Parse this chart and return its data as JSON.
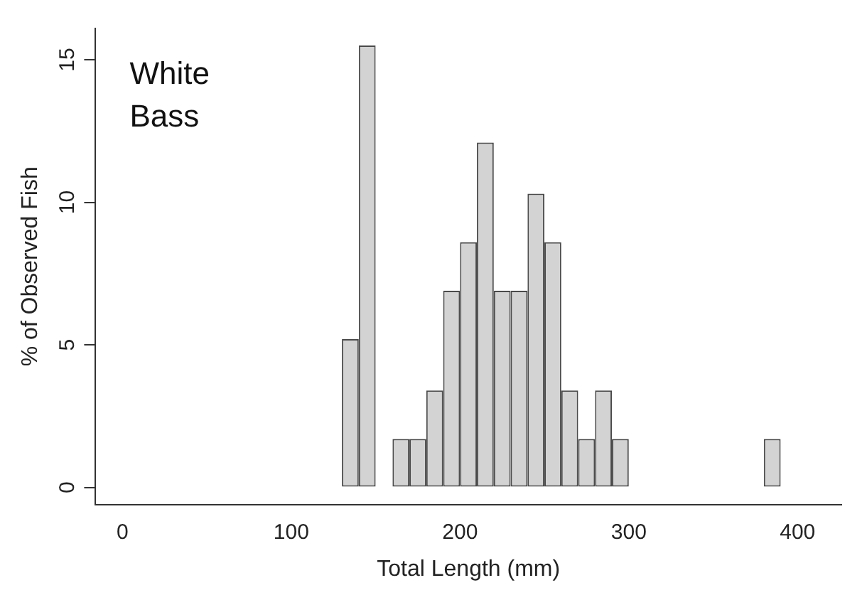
{
  "chart_data": {
    "type": "histogram",
    "xlabel": "Total Length (mm)",
    "ylabel": "% of Observed Fish",
    "annotations": [
      "White Bass"
    ],
    "bins": [
      130,
      140,
      150,
      160,
      170,
      180,
      190,
      200,
      210,
      220,
      230,
      240,
      250,
      260,
      270,
      280,
      290,
      300,
      310,
      320,
      330,
      340,
      350,
      360,
      370,
      380,
      390
    ],
    "values": [
      5.2,
      15.5,
      0,
      1.7,
      1.7,
      3.4,
      6.9,
      8.6,
      12.1,
      6.9,
      6.9,
      10.3,
      8.6,
      3.4,
      1.7,
      3.4,
      1.7,
      0,
      0,
      0,
      0,
      0,
      0,
      0,
      0,
      1.7
    ],
    "color": "#d3d3d3",
    "xlim": [
      -16,
      426
    ],
    "xticks": [
      0,
      100,
      200,
      300,
      400
    ],
    "ylim": [
      -0.6,
      16.1
    ],
    "yticks": [
      0,
      5,
      10,
      15
    ],
    "grid": false,
    "legend": false
  }
}
